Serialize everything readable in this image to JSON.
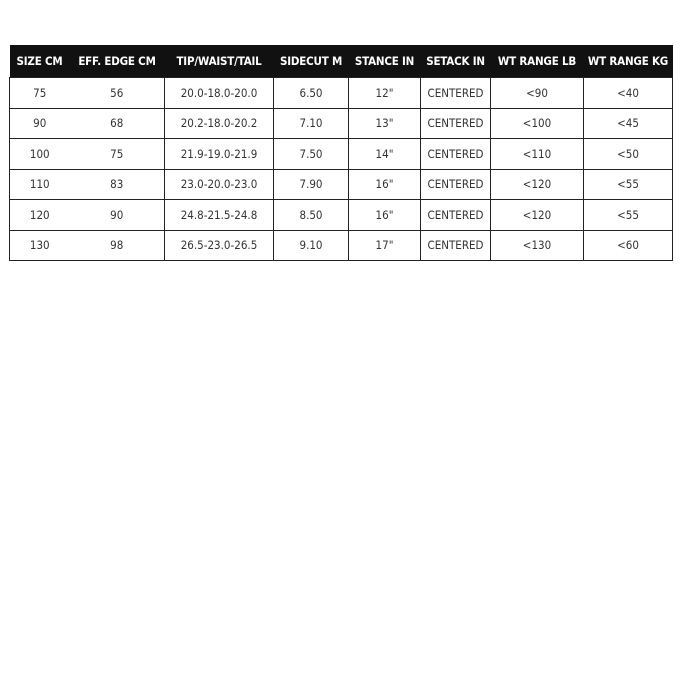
{
  "table": {
    "headers": [
      "SIZE CM",
      "EFF. EDGE CM",
      "TIP/WAIST/TAIL",
      "SIDECUT M",
      "STANCE IN",
      "SETACK IN",
      "WT RANGE LB",
      "WT RANGE KG"
    ],
    "rows": [
      [
        "75",
        "56",
        "20.0-18.0-20.0",
        "6.50",
        "12\"",
        "CENTERED",
        "<90",
        "<40"
      ],
      [
        "90",
        "68",
        "20.2-18.0-20.2",
        "7.10",
        "13\"",
        "CENTERED",
        "<100",
        "<45"
      ],
      [
        "100",
        "75",
        "21.9-19.0-21.9",
        "7.50",
        "14\"",
        "CENTERED",
        "<110",
        "<50"
      ],
      [
        "110",
        "83",
        "23.0-20.0-23.0",
        "7.90",
        "16\"",
        "CENTERED",
        "<120",
        "<55"
      ],
      [
        "120",
        "90",
        "24.8-21.5-24.8",
        "8.50",
        "16\"",
        "CENTERED",
        "<120",
        "<55"
      ],
      [
        "130",
        "98",
        "26.5-23.0-26.5",
        "9.10",
        "17\"",
        "CENTERED",
        "<130",
        "<60"
      ]
    ]
  }
}
